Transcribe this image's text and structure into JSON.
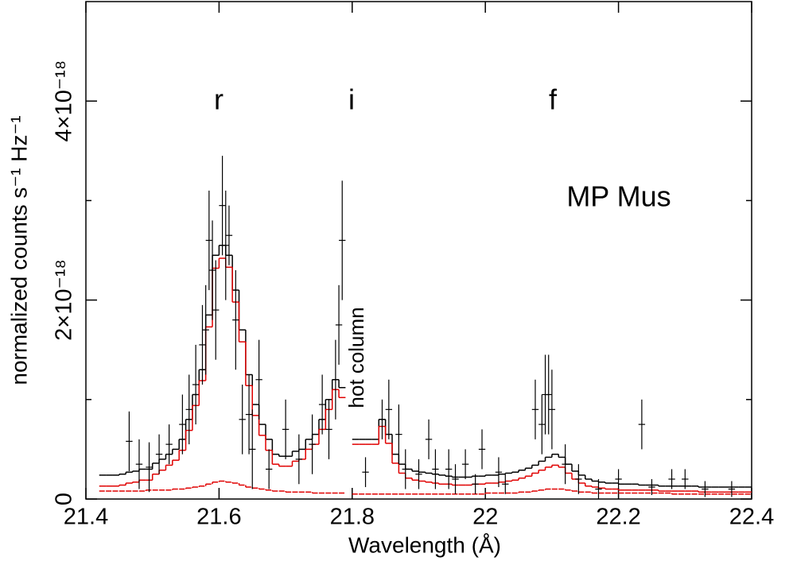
{
  "chart_data": {
    "type": "spectrum",
    "xlabel": "Wavelength (Å)",
    "ylabel": "normalized counts s⁻¹ Hz⁻¹",
    "annotations": [
      "r",
      "i",
      "f",
      "MP Mus",
      "hot column"
    ],
    "xlim": [
      21.4,
      22.4
    ],
    "xticks": [
      21.4,
      21.6,
      21.8,
      22,
      22.2,
      22.4
    ],
    "ylim": [
      0,
      5e-18
    ],
    "yticks": [
      0,
      {
        "value": 2e-18,
        "label": "2×10⁻¹⁸"
      },
      {
        "value": 4e-18,
        "label": "4×10⁻¹⁸"
      }
    ],
    "yminorticks": [
      1e-18,
      3e-18
    ],
    "bins": [
      21.42,
      21.43,
      21.44,
      21.45,
      21.46,
      21.47,
      21.48,
      21.49,
      21.5,
      21.51,
      21.52,
      21.53,
      21.54,
      21.55,
      21.56,
      21.57,
      21.58,
      21.59,
      21.6,
      21.61,
      21.62,
      21.63,
      21.64,
      21.65,
      21.66,
      21.67,
      21.68,
      21.69,
      21.7,
      21.71,
      21.72,
      21.73,
      21.74,
      21.75,
      21.76,
      21.77,
      21.78,
      21.79,
      21.8,
      21.81,
      21.82,
      21.83,
      21.84,
      21.85,
      21.86,
      21.87,
      21.88,
      21.89,
      21.9,
      21.91,
      21.92,
      21.93,
      21.94,
      21.95,
      21.96,
      21.97,
      21.98,
      21.99,
      22.0,
      22.01,
      22.02,
      22.03,
      22.04,
      22.05,
      22.06,
      22.07,
      22.08,
      22.09,
      22.1,
      22.11,
      22.12,
      22.13,
      22.14,
      22.15,
      22.16,
      22.17,
      22.18,
      22.19,
      22.2,
      22.21,
      22.22,
      22.23,
      22.24,
      22.25,
      22.26,
      22.27,
      22.28,
      22.29,
      22.3,
      22.31,
      22.32,
      22.33,
      22.34,
      22.35,
      22.36,
      22.37,
      22.38,
      22.39,
      22.4
    ],
    "models": [
      {
        "color": "#000000",
        "dashed": false,
        "values": [
          2.4e-19,
          2.4e-19,
          2.4e-19,
          2.5e-19,
          2.7e-19,
          2.8e-19,
          3e-19,
          3e-19,
          3.6e-19,
          4e-19,
          4.5e-19,
          5e-19,
          6e-19,
          8e-19,
          1.05e-18,
          1.3e-18,
          1.85e-18,
          2.45e-18,
          2.55e-18,
          2.45e-18,
          2.1e-18,
          1.7e-18,
          1.25e-18,
          9.5e-19,
          7.5e-19,
          6e-19,
          4.5e-19,
          4.3e-19,
          4.3e-19,
          4.8e-19,
          5e-19,
          6e-19,
          6.5e-19,
          8e-19,
          1e-18,
          1.2e-18,
          1.12e-18,
          null,
          6e-19,
          6e-19,
          6e-19,
          6e-19,
          8e-19,
          6.5e-19,
          4.5e-19,
          3.5e-19,
          3e-19,
          2.8e-19,
          2.7e-19,
          2.6e-19,
          2.5e-19,
          2.4e-19,
          2.3e-19,
          2.2e-19,
          2.2e-19,
          2.2e-19,
          2.3e-19,
          2.3e-19,
          2.4e-19,
          2.4e-19,
          2.5e-19,
          2.6e-19,
          2.7e-19,
          2.9e-19,
          3.1e-19,
          3.4e-19,
          3.8e-19,
          4.2e-19,
          4.5e-19,
          4.2e-19,
          3.5e-19,
          2.8e-19,
          2.4e-19,
          2e-19,
          1.8e-19,
          1.7e-19,
          1.6e-19,
          1.6e-19,
          1.5e-19,
          1.5e-19,
          1.5e-19,
          1.4e-19,
          1.4e-19,
          1.4e-19,
          1.3e-19,
          1.3e-19,
          1.3e-19,
          1.3e-19,
          1.3e-19,
          1.3e-19,
          1.2e-19,
          1.2e-19,
          1.2e-19,
          1.2e-19,
          1.2e-19,
          1.2e-19,
          1.2e-19,
          1.2e-19
        ]
      },
      {
        "color": "#e00000",
        "dashed": false,
        "values": [
          1.3e-19,
          1.3e-19,
          1.3e-19,
          1.4e-19,
          1.6e-19,
          1.7e-19,
          1.9e-19,
          1.9e-19,
          2.5e-19,
          2.9e-19,
          3.4e-19,
          3.9e-19,
          4.9e-19,
          6.9e-19,
          9.4e-19,
          1.19e-18,
          1.73e-18,
          2.32e-18,
          2.42e-18,
          2.33e-18,
          1.98e-18,
          1.58e-18,
          1.14e-18,
          8.4e-19,
          6.4e-19,
          4.9e-19,
          3.5e-19,
          3.3e-19,
          3.3e-19,
          3.8e-19,
          4e-19,
          5e-19,
          5.5e-19,
          7e-19,
          9e-19,
          1.1e-18,
          1.02e-18,
          null,
          5.5e-19,
          5.5e-19,
          5.5e-19,
          5.5e-19,
          7.3e-19,
          5.6e-19,
          3.6e-19,
          2.6e-19,
          2.1e-19,
          1.9e-19,
          1.8e-19,
          1.7e-19,
          1.6e-19,
          1.5e-19,
          1.5e-19,
          1.4e-19,
          1.4e-19,
          1.4e-19,
          1.5e-19,
          1.5e-19,
          1.6e-19,
          1.6e-19,
          1.7e-19,
          1.8e-19,
          1.9e-19,
          2.1e-19,
          2.3e-19,
          2.6e-19,
          2.9e-19,
          3.2e-19,
          3.4e-19,
          3.2e-19,
          2.6e-19,
          2e-19,
          1.6e-19,
          1.3e-19,
          1.2e-19,
          1.1e-19,
          1e-19,
          1e-19,
          9e-20,
          9e-20,
          9e-20,
          9e-20,
          9e-20,
          9e-20,
          8e-20,
          8e-20,
          8e-20,
          8e-20,
          8e-20,
          8e-20,
          7e-20,
          7e-20,
          7e-20,
          7e-20,
          7e-20,
          7e-20,
          7e-20,
          7e-20
        ]
      },
      {
        "color": "#e00000",
        "dashed": true,
        "values": [
          8e-20,
          8e-20,
          8e-20,
          8e-20,
          8e-20,
          8e-20,
          8e-20,
          9e-20,
          9e-20,
          9e-20,
          9e-20,
          1e-19,
          1e-19,
          1.1e-19,
          1.2e-19,
          1.3e-19,
          1.5e-19,
          1.7e-19,
          1.8e-19,
          1.7e-19,
          1.6e-19,
          1.4e-19,
          1.2e-19,
          1.1e-19,
          1e-19,
          9e-20,
          8e-20,
          8e-20,
          7e-20,
          7e-20,
          7e-20,
          7e-20,
          6e-20,
          6e-20,
          6e-20,
          6e-20,
          6e-20,
          null,
          5e-20,
          5e-20,
          5e-20,
          5e-20,
          5e-20,
          5e-20,
          5e-20,
          5e-20,
          5e-20,
          5e-20,
          5e-20,
          5e-20,
          5e-20,
          5e-20,
          5e-20,
          5e-20,
          5e-20,
          5e-20,
          5e-20,
          5e-20,
          6e-20,
          6e-20,
          6e-20,
          6e-20,
          6e-20,
          7e-20,
          7e-20,
          8e-20,
          9e-20,
          1e-19,
          1e-19,
          1e-19,
          9e-20,
          8e-20,
          7e-20,
          7e-20,
          6e-20,
          6e-20,
          6e-20,
          6e-20,
          6e-20,
          6e-20,
          6e-20,
          6e-20,
          6e-20,
          6e-20,
          6e-20,
          6e-20,
          5e-20,
          5e-20,
          5e-20,
          5e-20,
          5e-20,
          5e-20,
          5e-20,
          5e-20,
          5e-20,
          5e-20,
          5e-20,
          5e-20
        ]
      }
    ],
    "points": {
      "color": "#000000",
      "xerr": 0.005,
      "x": [
        21.465,
        21.48,
        21.495,
        21.51,
        21.525,
        21.545,
        21.555,
        21.565,
        21.575,
        21.58,
        21.585,
        21.59,
        21.595,
        21.605,
        21.61,
        21.615,
        21.625,
        21.635,
        21.645,
        21.65,
        21.66,
        21.675,
        21.7,
        21.72,
        21.74,
        21.755,
        21.765,
        21.775,
        21.78,
        21.785,
        21.82,
        21.845,
        21.855,
        21.87,
        21.88,
        21.9,
        21.915,
        21.925,
        21.945,
        21.955,
        21.97,
        21.985,
        21.995,
        22.02,
        22.03,
        22.075,
        22.085,
        22.09,
        22.095,
        22.1,
        22.12,
        22.14,
        22.17,
        22.2,
        22.235,
        22.25,
        22.28,
        22.3,
        22.33,
        22.37
      ],
      "values": [
        5.8e-19,
        3.5e-19,
        3.2e-19,
        4.5e-19,
        5.5e-19,
        7.5e-19,
        9e-19,
        1.15e-18,
        1.55e-18,
        1.7e-18,
        2.6e-18,
        2.3e-18,
        1.9e-18,
        2.95e-18,
        2.55e-18,
        2.65e-18,
        1.8e-18,
        8e-19,
        8.5e-19,
        5e-19,
        1.2e-18,
        3e-19,
        7e-19,
        4e-19,
        5.5e-19,
        9.5e-19,
        7e-19,
        1.2e-18,
        1.75e-18,
        2.6e-18,
        2.7e-19,
        8e-19,
        9e-19,
        6.5e-19,
        3e-19,
        2.5e-19,
        6e-19,
        3e-19,
        3e-19,
        2e-19,
        3.5e-19,
        1.5e-19,
        5e-19,
        2.7e-19,
        1.5e-19,
        9e-19,
        7.5e-19,
        1.05e-18,
        1.05e-18,
        9e-19,
        3.5e-19,
        2e-19,
        1e-19,
        2e-19,
        7.5e-19,
        1.2e-19,
        2e-19,
        2e-19,
        1e-19,
        1e-19
      ],
      "yerr": [
        3e-19,
        2.5e-19,
        2.5e-19,
        2e-19,
        2e-19,
        3e-19,
        3.5e-19,
        4e-19,
        4e-19,
        4.5e-19,
        5e-19,
        5e-19,
        5e-19,
        5e-19,
        5.5e-19,
        3e-19,
        5e-19,
        3.5e-19,
        4e-19,
        4e-19,
        4e-19,
        2e-19,
        3e-19,
        2.5e-19,
        3e-19,
        3e-19,
        3e-19,
        4e-19,
        4e-19,
        6e-19,
        1.5e-19,
        2e-19,
        3e-19,
        3e-19,
        2e-19,
        1.5e-19,
        2e-19,
        2e-19,
        2e-19,
        1.5e-19,
        1.5e-19,
        1e-19,
        2e-19,
        1.5e-19,
        1e-19,
        3e-19,
        3e-19,
        4e-19,
        4e-19,
        4e-19,
        2e-19,
        1.5e-19,
        1e-19,
        1e-19,
        2.5e-19,
        8e-20,
        1e-19,
        1e-19,
        8e-20,
        8e-20
      ]
    }
  }
}
